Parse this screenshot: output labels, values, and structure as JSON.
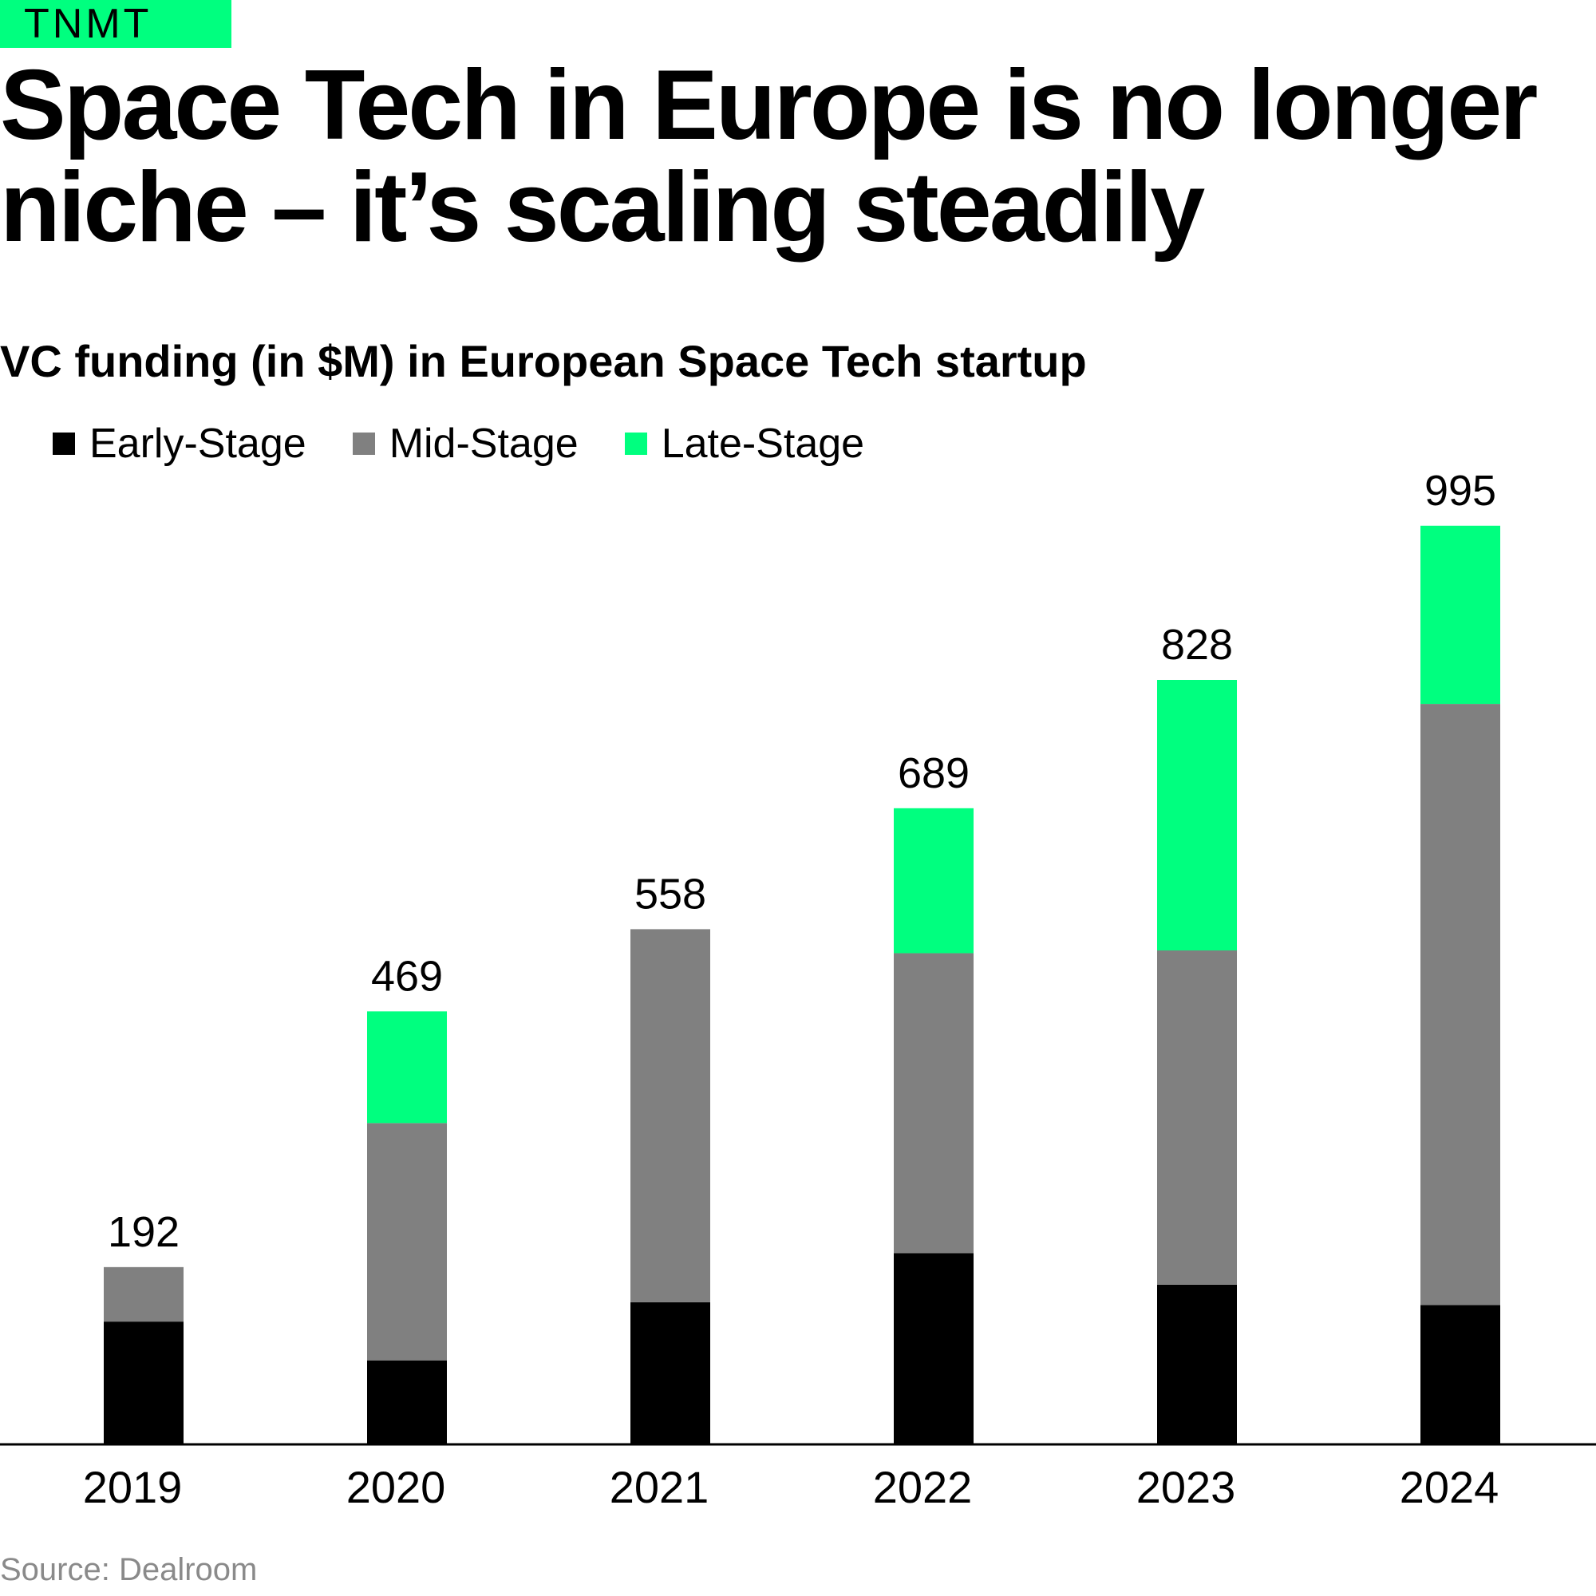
{
  "brand": {
    "name": "TNMT"
  },
  "header": {
    "title": "Space Tech in Europe is no longer niche – it’s scaling steadily",
    "subtitle": "VC funding (in $M) in European Space Tech startup"
  },
  "footer": {
    "source": "Source: Dealroom"
  },
  "colors": {
    "brand": "#00ff7f",
    "early": "#000000",
    "mid": "#808080",
    "late": "#00ff7f",
    "text": "#000000",
    "muted": "#8a8a8a"
  },
  "chart_data": {
    "type": "bar",
    "stacked": true,
    "title": "VC funding (in $M) in European Space Tech startup",
    "xlabel": "",
    "ylabel": "",
    "ylim": [
      0,
      1000
    ],
    "grid": false,
    "legend_position": "top-left",
    "categories": [
      "2019",
      "2020",
      "2021",
      "2022",
      "2023",
      "2024"
    ],
    "series": [
      {
        "name": "Early-Stage",
        "color": "#000000",
        "values": [
          133,
          91,
          154,
          207,
          173,
          151
        ]
      },
      {
        "name": "Mid-Stage",
        "color": "#808080",
        "values": [
          59,
          257,
          404,
          325,
          362,
          651
        ]
      },
      {
        "name": "Late-Stage",
        "color": "#00ff7f",
        "values": [
          0,
          121,
          0,
          157,
          293,
          193
        ]
      }
    ],
    "totals": [
      192,
      469,
      558,
      689,
      828,
      995
    ]
  }
}
